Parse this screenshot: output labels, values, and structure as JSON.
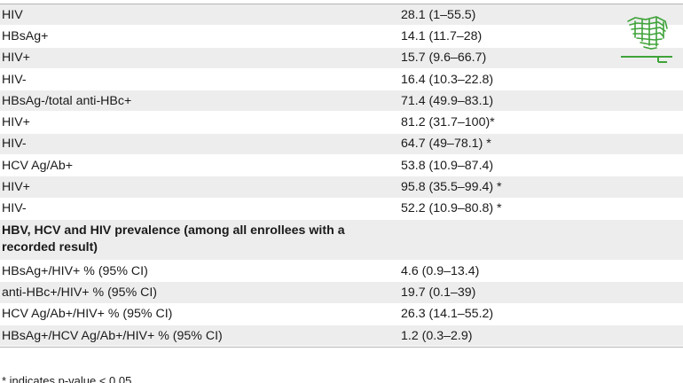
{
  "table": {
    "rows": [
      {
        "label": "HIV",
        "value": "28.1 (1–55.5)"
      },
      {
        "label": "HBsAg+",
        "value": "14.1 (11.7–28)"
      },
      {
        "label": "HIV+",
        "value": "15.7 (9.6–66.7)"
      },
      {
        "label": "HIV-",
        "value": "16.4 (10.3–22.8)"
      },
      {
        "label": "HBsAg-/total anti-HBc+",
        "value": "71.4 (49.9–83.1)"
      },
      {
        "label": "HIV+",
        "value": "81.2 (31.7–100)*"
      },
      {
        "label": "HIV-",
        "value": "64.7 (49–78.1) *"
      },
      {
        "label": "HCV Ag/Ab+",
        "value": "53.8 (10.9–87.4)"
      },
      {
        "label": "HIV+",
        "value": "95.8 (35.5–99.4) *"
      },
      {
        "label": "HIV-",
        "value": "52.2 (10.9–80.8) *"
      }
    ],
    "section_heading": "HBV, HCV and HIV prevalence (among all enrollees with a recorded result)",
    "prevalence_rows": [
      {
        "label": "HBsAg+/HIV+ % (95% CI)",
        "value": "4.6 (0.9–13.4)"
      },
      {
        "label": "anti-HBc+/HIV+ % (95% CI)",
        "value": "19.7 (0.1–39)"
      },
      {
        "label": "HCV Ag/Ab+/HIV+ % (95% CI)",
        "value": "26.3 (14.1–55.2)"
      },
      {
        "label": "HBsAg+/HCV Ag/Ab+/HIV+ % (95% CI)",
        "value": "1.2 (0.3–2.9)"
      }
    ]
  },
  "footnote": "* indicates p-value < 0.05",
  "colors": {
    "row_shade": "#ededed",
    "logo_green": "#3fa33a",
    "rule": "#b5b5b5"
  },
  "icons": {
    "logo": "plos-journal-logo"
  }
}
